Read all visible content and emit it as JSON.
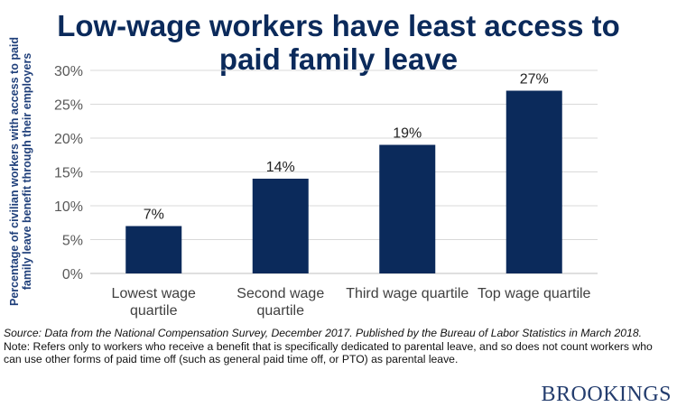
{
  "title_line1": "Low-wage workers have least access to",
  "title_line2": "paid family leave",
  "chart_data": {
    "type": "bar",
    "title": "Low-wage workers have least access to paid family leave",
    "ylabel_line1": "Percentage of civilian workers with access to paid",
    "ylabel_line2": "family leave benefit through their employers",
    "categories": [
      [
        "Lowest wage",
        "quartile"
      ],
      [
        "Second wage",
        "quartile"
      ],
      [
        "Third wage quartile"
      ],
      [
        "Top wage quartile"
      ]
    ],
    "values": [
      7,
      14,
      19,
      27
    ],
    "data_labels": [
      "7%",
      "14%",
      "19%",
      "27%"
    ],
    "ylim": [
      0,
      30
    ],
    "yticks": [
      "0%",
      "5%",
      "10%",
      "15%",
      "20%",
      "25%",
      "30%"
    ],
    "grid": true,
    "bar_color": "#0b2a5b"
  },
  "source": "Source: Data from the National Compensation Survey, December 2017. Published by the Bureau of Labor Statistics in March 2018.",
  "note": "Note: Refers only to workers who receive a benefit that is specifically dedicated to parental leave, and so does not count workers who can use other forms of paid time off (such as general paid time off, or PTO) as parental leave.",
  "logo_text": "BROOKINGS",
  "colors": {
    "title": "#0b2a5b",
    "axis_title": "#1f3f7a",
    "grid": "#d9d9d9"
  }
}
